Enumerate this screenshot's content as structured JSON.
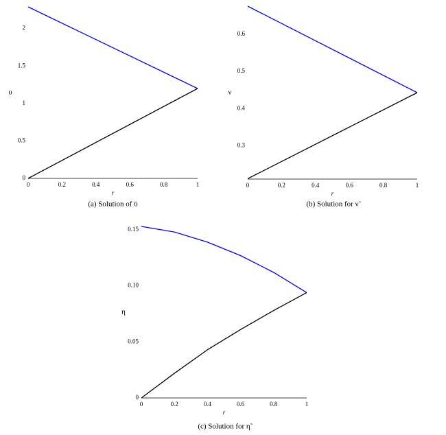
{
  "chart_data": [
    {
      "type": "line",
      "caption": "(a) Solution of ῡ",
      "x_label": "r",
      "y_label": "υ",
      "x": [
        0,
        1
      ],
      "xlim": [
        0,
        1
      ],
      "xticks": [
        0,
        0.2,
        0.4,
        0.6,
        0.8,
        1
      ],
      "ylim": [
        0,
        2.29
      ],
      "yticks": [
        0,
        0.5,
        1,
        1.5,
        2
      ],
      "series": [
        {
          "color": "#0000ff",
          "values": [
            2.29,
            1.2
          ]
        },
        {
          "color": "#000000",
          "values": [
            0,
            1.2
          ]
        }
      ]
    },
    {
      "type": "line",
      "caption": "(b) Solution for ν̃",
      "x_label": "r",
      "y_label": "ν",
      "x": [
        0,
        1
      ],
      "xlim": [
        0,
        1
      ],
      "xticks": [
        0,
        0.2,
        0.4,
        0.6,
        0.8,
        1
      ],
      "ylim": [
        0.21,
        0.676
      ],
      "yticks": [
        0.3,
        0.4,
        0.5,
        0.6
      ],
      "series": [
        {
          "color": "#0000ff",
          "values": [
            0.676,
            0.443
          ]
        },
        {
          "color": "#000000",
          "values": [
            0.211,
            0.443
          ]
        }
      ]
    },
    {
      "type": "line",
      "caption": "(c) Solution for η̃",
      "x_label": "r",
      "y_label": "η",
      "x": [
        0,
        0.2,
        0.4,
        0.6,
        0.8,
        1
      ],
      "xlim": [
        0,
        1
      ],
      "xticks": [
        0,
        0.2,
        0.4,
        0.6,
        0.8,
        1
      ],
      "ylim": [
        0,
        0.153
      ],
      "yticks": [
        0,
        0.05,
        {
          "value": 0.1,
          "label": "0.10"
        },
        0.15
      ],
      "series": [
        {
          "color": "#0000ff",
          "values": [
            0.153,
            0.148,
            0.139,
            0.127,
            0.112,
            0.094
          ]
        },
        {
          "color": "#000000",
          "values": [
            0,
            0.022,
            0.043,
            0.061,
            0.078,
            0.094
          ]
        }
      ]
    }
  ]
}
